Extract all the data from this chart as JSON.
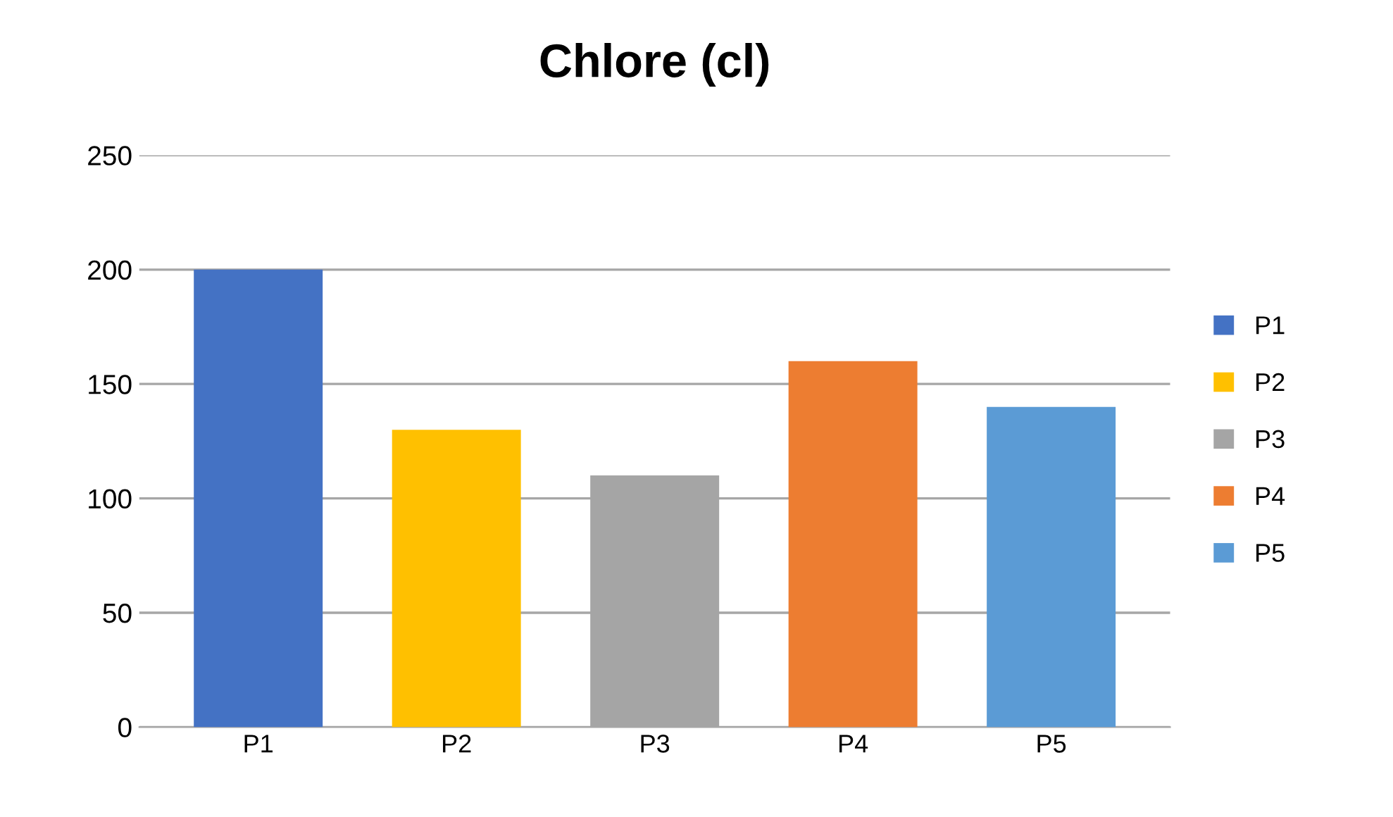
{
  "chart_data": {
    "type": "bar",
    "title": "Chlore (cl)",
    "categories": [
      "P1",
      "P2",
      "P3",
      "P4",
      "P5"
    ],
    "series": [
      {
        "name": "P1",
        "color": "#4472c4",
        "values": [
          200,
          null,
          null,
          null,
          null
        ]
      },
      {
        "name": "P2",
        "color": "#ffc000",
        "values": [
          null,
          130,
          null,
          null,
          null
        ]
      },
      {
        "name": "P3",
        "color": "#a5a5a5",
        "values": [
          null,
          null,
          110,
          null,
          null
        ]
      },
      {
        "name": "P4",
        "color": "#ed7d31",
        "values": [
          null,
          null,
          null,
          160,
          null
        ]
      },
      {
        "name": "P5",
        "color": "#5b9bd5",
        "values": [
          null,
          null,
          null,
          null,
          140
        ]
      }
    ],
    "ylim": [
      0,
      250
    ],
    "yticks": [
      0,
      50,
      100,
      150,
      200,
      250
    ],
    "grid": "y",
    "legend": "right"
  }
}
